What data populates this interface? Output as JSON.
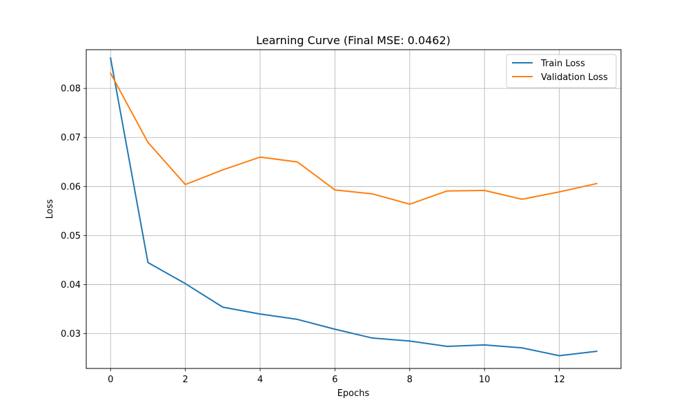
{
  "chart_data": {
    "type": "line",
    "title": "Learning Curve (Final MSE: 0.0462)",
    "xlabel": "Epochs",
    "ylabel": "Loss",
    "xlim": [
      -0.65,
      13.65
    ],
    "ylim": [
      0.0229,
      0.0879
    ],
    "x_ticks": [
      0,
      2,
      4,
      6,
      8,
      10,
      12
    ],
    "y_ticks": [
      0.03,
      0.04,
      0.05,
      0.06,
      0.07,
      0.08
    ],
    "x_tick_labels": [
      "0",
      "2",
      "4",
      "6",
      "8",
      "10",
      "12"
    ],
    "y_tick_labels": [
      "0.03",
      "0.04",
      "0.05",
      "0.06",
      "0.07",
      "0.08"
    ],
    "grid": true,
    "legend_position": "top-right",
    "x": [
      0,
      1,
      2,
      3,
      4,
      5,
      6,
      7,
      8,
      9,
      10,
      11,
      12,
      13
    ],
    "series": [
      {
        "name": "Train Loss",
        "color": "#1f77b4",
        "values": [
          0.0862,
          0.0445,
          0.0402,
          0.0354,
          0.034,
          0.0329,
          0.0309,
          0.0291,
          0.0285,
          0.0274,
          0.0277,
          0.0271,
          0.0255,
          0.0264
        ]
      },
      {
        "name": "Validation Loss",
        "color": "#ff7f0e",
        "values": [
          0.0831,
          0.069,
          0.0604,
          0.0634,
          0.066,
          0.065,
          0.0593,
          0.0585,
          0.0564,
          0.0591,
          0.0592,
          0.0574,
          0.0589,
          0.0606
        ]
      }
    ]
  }
}
